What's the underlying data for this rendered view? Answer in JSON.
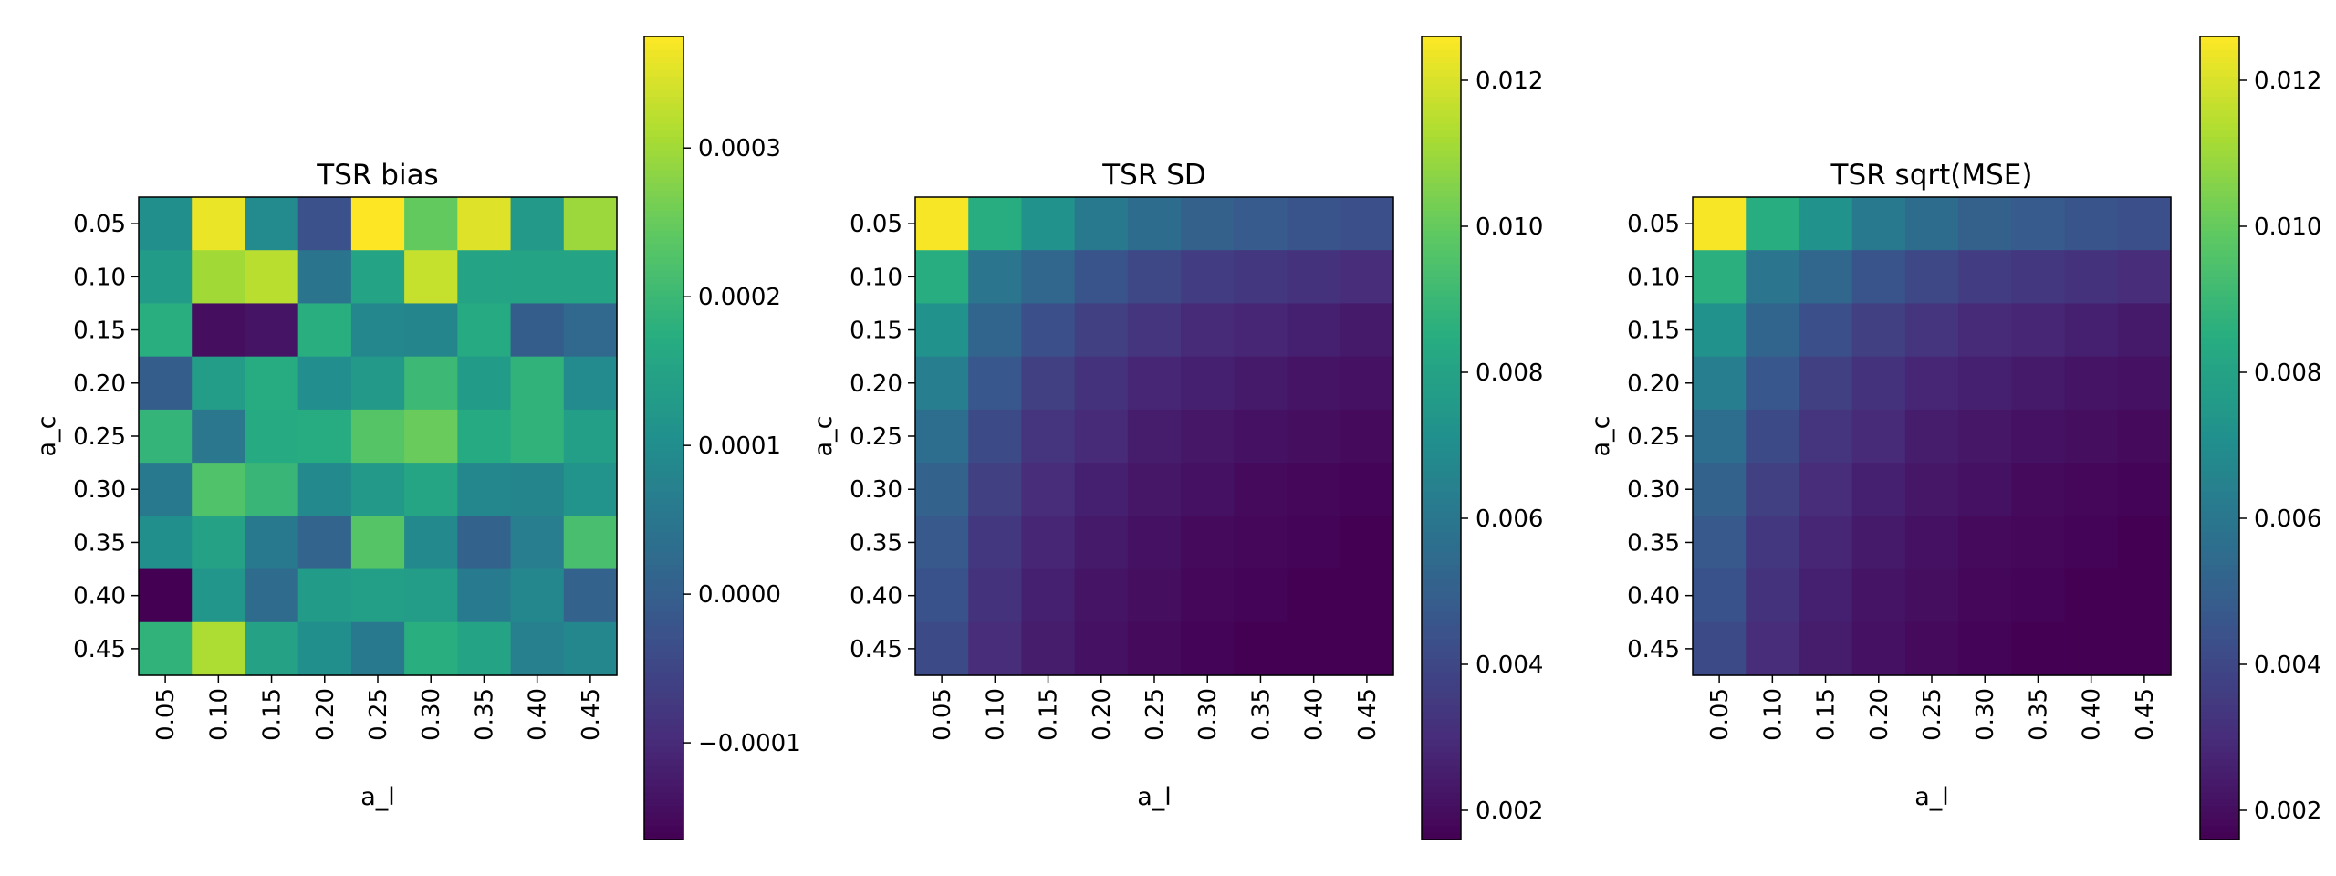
{
  "chart_data": [
    {
      "type": "heatmap",
      "title": "TSR bias",
      "xlabel": "a_l",
      "ylabel": "a_c",
      "x_categories": [
        "0.05",
        "0.10",
        "0.15",
        "0.20",
        "0.25",
        "0.30",
        "0.35",
        "0.40",
        "0.45"
      ],
      "y_categories": [
        "0.05",
        "0.10",
        "0.15",
        "0.20",
        "0.25",
        "0.30",
        "0.35",
        "0.40",
        "0.45"
      ],
      "colormap": "viridis",
      "vmin": -0.000165,
      "vmax": 0.000375,
      "colorbar_ticks": [
        -0.0001,
        0.0,
        0.0001,
        0.0002,
        0.0003
      ],
      "colorbar_tick_labels": [
        "−0.0001",
        "0.0000",
        "0.0001",
        "0.0002",
        "0.0003"
      ],
      "values": [
        [
          0.000105,
          0.00036,
          9.5e-05,
          -3e-05,
          0.000375,
          0.000245,
          0.00035,
          0.000125,
          0.000295
        ],
        [
          0.00013,
          0.0003,
          0.00032,
          4.5e-05,
          0.00015,
          0.00033,
          0.00015,
          0.00015,
          0.00015
        ],
        [
          0.000175,
          -0.000145,
          -0.000135,
          0.000175,
          8.5e-05,
          8e-05,
          0.000165,
          -5e-06,
          2e-05
        ],
        [
          -5e-06,
          0.000135,
          0.00017,
          0.0001,
          0.000125,
          0.0002,
          0.00013,
          0.000185,
          9.5e-05
        ],
        [
          0.00019,
          5e-05,
          0.000165,
          0.00017,
          0.00023,
          0.00025,
          0.000165,
          0.000185,
          0.00014
        ],
        [
          5.5e-05,
          0.000225,
          0.000195,
          9e-05,
          0.000125,
          0.000155,
          8.5e-05,
          8e-05,
          0.000115
        ],
        [
          0.000105,
          0.000145,
          5.5e-05,
          1e-05,
          0.00023,
          9e-05,
          5e-06,
          6.5e-05,
          0.000215
        ],
        [
          -0.000165,
          0.00012,
          2.5e-05,
          0.00013,
          0.00014,
          0.000135,
          6e-05,
          8.5e-05,
          5e-06
        ],
        [
          0.000185,
          0.00031,
          0.000145,
          0.000105,
          5.5e-05,
          0.000175,
          0.00015,
          7e-05,
          8.5e-05
        ]
      ]
    },
    {
      "type": "heatmap",
      "title": "TSR SD",
      "xlabel": "a_l",
      "ylabel": "a_c",
      "x_categories": [
        "0.05",
        "0.10",
        "0.15",
        "0.20",
        "0.25",
        "0.30",
        "0.35",
        "0.40",
        "0.45"
      ],
      "y_categories": [
        "0.05",
        "0.10",
        "0.15",
        "0.20",
        "0.25",
        "0.30",
        "0.35",
        "0.40",
        "0.45"
      ],
      "colormap": "viridis",
      "vmin": 0.0016,
      "vmax": 0.0126,
      "colorbar_ticks": [
        0.002,
        0.004,
        0.006,
        0.008,
        0.01,
        0.012
      ],
      "colorbar_tick_labels": [
        "0.002",
        "0.004",
        "0.006",
        "0.008",
        "0.010",
        "0.012"
      ],
      "values": [
        [
          0.0125,
          0.0085,
          0.0072,
          0.0061,
          0.0055,
          0.005,
          0.0048,
          0.0045,
          0.0043
        ],
        [
          0.0085,
          0.0059,
          0.0053,
          0.0045,
          0.004,
          0.0036,
          0.0034,
          0.0032,
          0.003
        ],
        [
          0.0072,
          0.0052,
          0.0043,
          0.0037,
          0.0033,
          0.0029,
          0.0028,
          0.0026,
          0.0024
        ],
        [
          0.0063,
          0.0046,
          0.0037,
          0.0032,
          0.0028,
          0.0026,
          0.0024,
          0.0022,
          0.0021
        ],
        [
          0.0056,
          0.0041,
          0.0033,
          0.0029,
          0.0025,
          0.0023,
          0.0021,
          0.002,
          0.0019
        ],
        [
          0.0051,
          0.0037,
          0.003,
          0.0026,
          0.0023,
          0.0021,
          0.0019,
          0.0018,
          0.0017
        ],
        [
          0.0047,
          0.0034,
          0.0028,
          0.0024,
          0.0021,
          0.0019,
          0.0018,
          0.0017,
          0.0016
        ],
        [
          0.0044,
          0.0032,
          0.0026,
          0.0022,
          0.002,
          0.0018,
          0.0017,
          0.0016,
          0.0016
        ],
        [
          0.0041,
          0.003,
          0.0025,
          0.0021,
          0.0019,
          0.0017,
          0.0016,
          0.0016,
          0.0015
        ]
      ]
    },
    {
      "type": "heatmap",
      "title": "TSR sqrt(MSE)",
      "xlabel": "a_l",
      "ylabel": "a_c",
      "x_categories": [
        "0.05",
        "0.10",
        "0.15",
        "0.20",
        "0.25",
        "0.30",
        "0.35",
        "0.40",
        "0.45"
      ],
      "y_categories": [
        "0.05",
        "0.10",
        "0.15",
        "0.20",
        "0.25",
        "0.30",
        "0.35",
        "0.40",
        "0.45"
      ],
      "colormap": "viridis",
      "vmin": 0.0016,
      "vmax": 0.0126,
      "colorbar_ticks": [
        0.002,
        0.004,
        0.006,
        0.008,
        0.01,
        0.012
      ],
      "colorbar_tick_labels": [
        "0.002",
        "0.004",
        "0.006",
        "0.008",
        "0.010",
        "0.012"
      ],
      "values": [
        [
          0.0125,
          0.0085,
          0.0072,
          0.0061,
          0.0055,
          0.005,
          0.0048,
          0.0045,
          0.0043
        ],
        [
          0.0086,
          0.0059,
          0.0053,
          0.0045,
          0.004,
          0.0036,
          0.0034,
          0.0032,
          0.003
        ],
        [
          0.0072,
          0.0052,
          0.0043,
          0.0037,
          0.0033,
          0.0029,
          0.0028,
          0.0026,
          0.0024
        ],
        [
          0.0063,
          0.0046,
          0.0037,
          0.0032,
          0.0028,
          0.0026,
          0.0024,
          0.0022,
          0.0021
        ],
        [
          0.0056,
          0.0041,
          0.0033,
          0.0029,
          0.0025,
          0.0023,
          0.0021,
          0.002,
          0.0019
        ],
        [
          0.0051,
          0.0037,
          0.003,
          0.0026,
          0.0023,
          0.0021,
          0.0019,
          0.0018,
          0.0017
        ],
        [
          0.0047,
          0.0034,
          0.0028,
          0.0024,
          0.0021,
          0.0019,
          0.0018,
          0.0017,
          0.0016
        ],
        [
          0.0044,
          0.0032,
          0.0026,
          0.0022,
          0.002,
          0.0018,
          0.0017,
          0.0016,
          0.0016
        ],
        [
          0.0041,
          0.003,
          0.0025,
          0.0021,
          0.0019,
          0.0017,
          0.0016,
          0.0016,
          0.0015
        ]
      ]
    }
  ]
}
